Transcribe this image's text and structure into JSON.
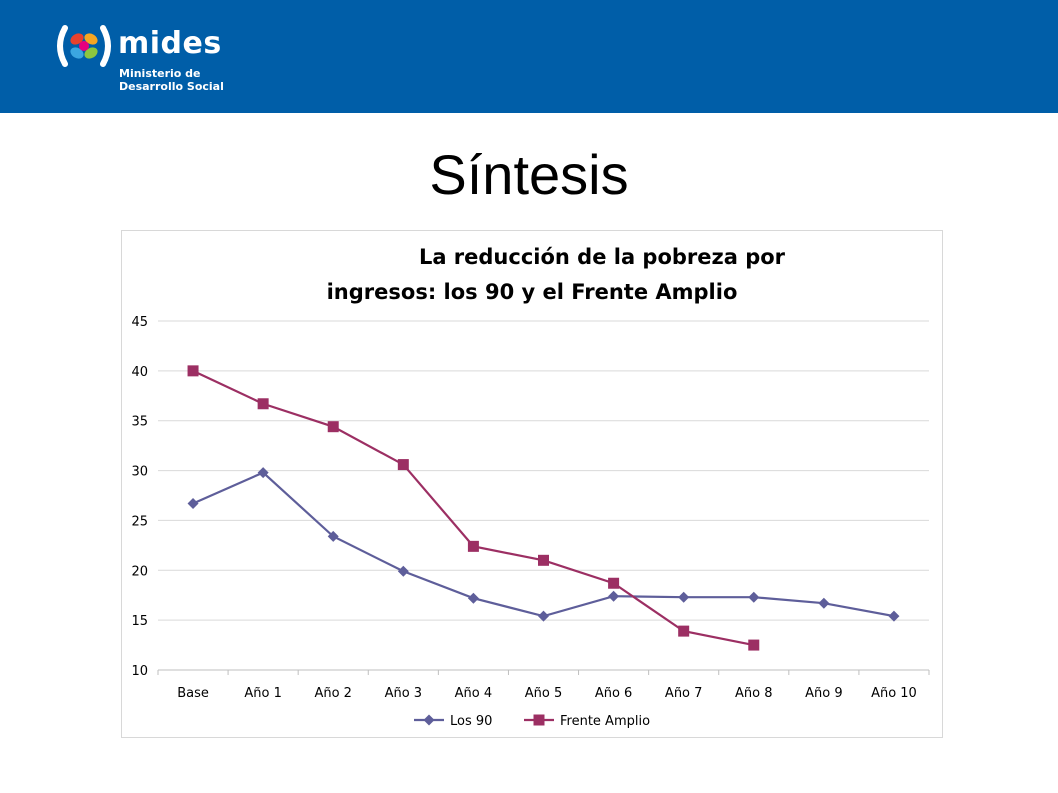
{
  "header": {
    "brand_name": "mides",
    "brand_subtitle": "Ministerio de Desarrollo Social",
    "band_color": "#005ea8"
  },
  "slide": {
    "title": "Síntesis"
  },
  "chart_data": {
    "type": "line",
    "title_line1": "La reducción de la pobreza por",
    "title_line2": "ingresos: los 90 y el Frente Amplio",
    "categories": [
      "Base",
      "Año 1",
      "Año 2",
      "Año 3",
      "Año 4",
      "Año 5",
      "Año 6",
      "Año 7",
      "Año 8",
      "Año 9",
      "Año 10"
    ],
    "ylim": [
      10,
      45
    ],
    "yticks": [
      10,
      15,
      20,
      25,
      30,
      35,
      40,
      45
    ],
    "grid": true,
    "legend_position": "bottom",
    "series": [
      {
        "name": "Los 90",
        "color": "#5e5e9a",
        "marker": "diamond",
        "values": [
          26.7,
          29.8,
          23.4,
          19.9,
          17.2,
          15.4,
          17.4,
          17.3,
          17.3,
          16.7,
          15.4
        ]
      },
      {
        "name": "Frente Amplio",
        "color": "#9c2f63",
        "marker": "square",
        "values": [
          40.0,
          36.7,
          34.4,
          30.6,
          22.4,
          21.0,
          18.7,
          13.9,
          12.5,
          null,
          null
        ]
      }
    ]
  }
}
